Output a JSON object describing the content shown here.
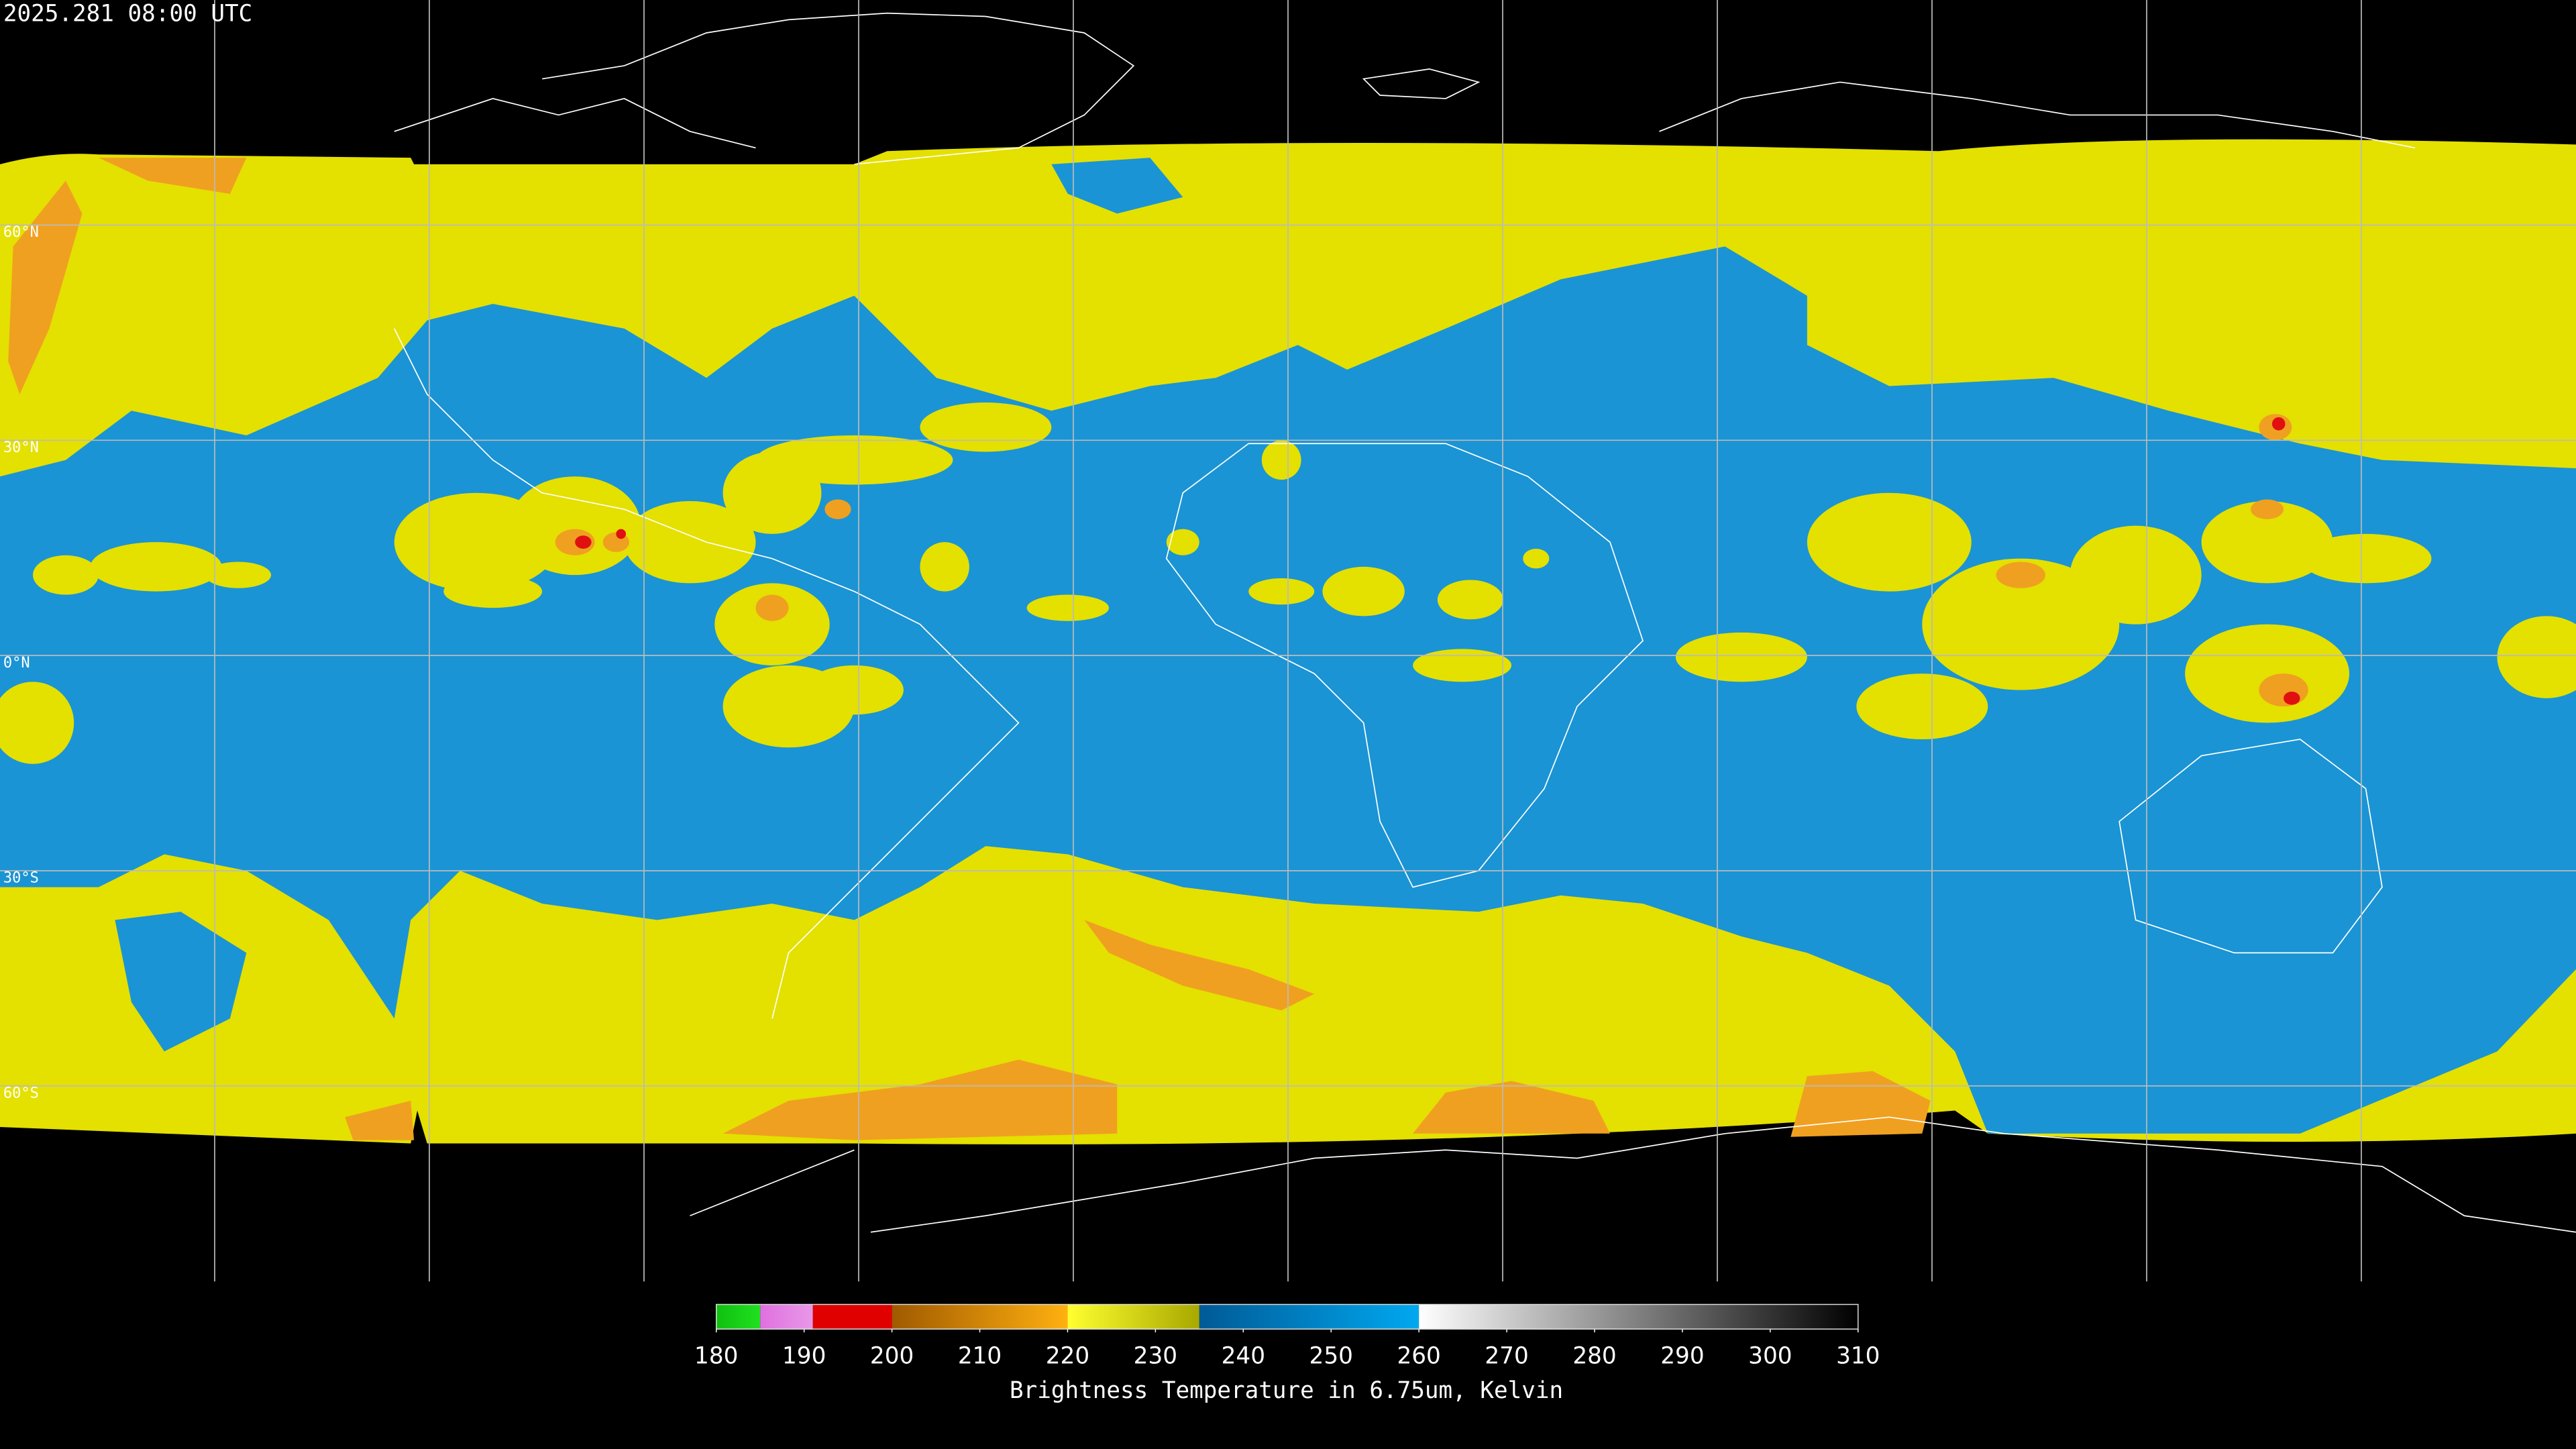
{
  "header": {
    "timestamp": "2025.281 08:00 UTC"
  },
  "map": {
    "latitude_labels": [
      "60°N",
      "30°N",
      "0°N",
      "30°S",
      "60°S"
    ]
  },
  "colorbar": {
    "range": [
      180,
      310
    ],
    "ticks": [
      180,
      190,
      200,
      210,
      220,
      230,
      240,
      250,
      260,
      270,
      280,
      290,
      300,
      310
    ],
    "label": "Brightness Temperature in 6.75um, Kelvin",
    "segments": [
      {
        "from": 180,
        "to": 185,
        "color_start": "#10c010",
        "color_end": "#20e020"
      },
      {
        "from": 185,
        "to": 191,
        "color_start": "#e070e0",
        "color_end": "#e898e8"
      },
      {
        "from": 191,
        "to": 200,
        "color_start": "#e00000",
        "color_end": "#e00000"
      },
      {
        "from": 200,
        "to": 220,
        "color_start": "#a05a00",
        "color_end": "#ffb010"
      },
      {
        "from": 220,
        "to": 235,
        "color_start": "#ffff30",
        "color_end": "#a8a800"
      },
      {
        "from": 235,
        "to": 260,
        "color_start": "#005a96",
        "color_end": "#00a8f0"
      },
      {
        "from": 260,
        "to": 310,
        "color_start": "#ffffff",
        "color_end": "#000000"
      }
    ]
  }
}
